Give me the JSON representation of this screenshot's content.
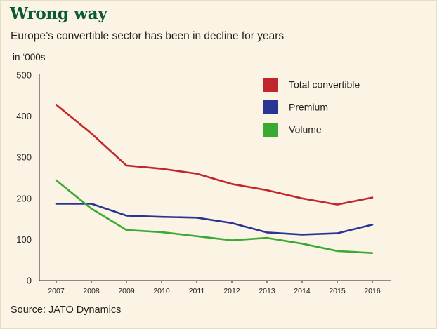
{
  "header": {
    "title": "Wrong way",
    "subtitle": "Europe’s convertible sector has been in decline for years"
  },
  "footer": {
    "source": "Source: JATO Dynamics"
  },
  "chart_data": {
    "type": "line",
    "title": "",
    "xlabel": "",
    "ylabel": "in ‘000s",
    "x": [
      "2007",
      "2008",
      "2009",
      "2010",
      "2011",
      "2012",
      "2013",
      "2014",
      "2015",
      "2016"
    ],
    "ylim": [
      0,
      500
    ],
    "yticks": [
      0,
      100,
      200,
      300,
      400,
      500
    ],
    "grid": false,
    "legend_position": "top-right",
    "series": [
      {
        "name": "Total convertible",
        "color": "#c0262c",
        "values": [
          428,
          358,
          280,
          272,
          260,
          235,
          220,
          200,
          185,
          202
        ]
      },
      {
        "name": "Premium",
        "color": "#283593",
        "values": [
          187,
          187,
          158,
          155,
          153,
          140,
          117,
          112,
          115,
          136
        ]
      },
      {
        "name": "Volume",
        "color": "#3aaa35",
        "values": [
          244,
          175,
          123,
          118,
          108,
          98,
          104,
          90,
          72,
          67
        ]
      }
    ]
  }
}
